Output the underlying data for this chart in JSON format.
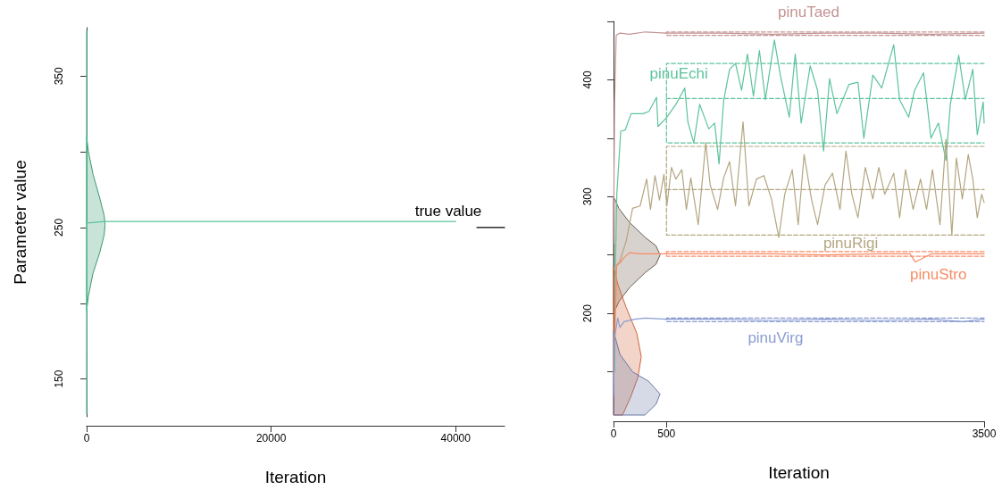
{
  "chart_data": [
    {
      "type": "line",
      "xlabel": "Iteration",
      "ylabel": "Parameter value",
      "xlim": [
        0,
        45300
      ],
      "xticks": [
        0,
        20000,
        40000
      ],
      "ylim": [
        125,
        382
      ],
      "yticks": [
        150,
        {
          "value": 200,
          "label": null
        },
        250,
        {
          "value": 300,
          "label": null
        },
        350
      ],
      "grid": false,
      "legend": false,
      "series": [
        {
          "type": "area",
          "color": "#3a9a72",
          "x": [
            0,
            200,
            700,
            1400,
            1900,
            2000,
            1900,
            1400,
            700,
            200,
            0
          ],
          "values": [
            310,
            300,
            285,
            270,
            258,
            252,
            245,
            233,
            220,
            205,
            195
          ]
        },
        {
          "color": "#5cc39c",
          "x": [
            0,
            0,
            30,
            2000,
            10000,
            20000,
            30000,
            40000
          ],
          "values": [
            380,
            127,
            253,
            254,
            254,
            254,
            254,
            254
          ]
        },
        {
          "color": "#000000",
          "x": [
            42300,
            45300
          ],
          "values": [
            250,
            250
          ]
        }
      ],
      "annotations": [
        "true value"
      ]
    },
    {
      "type": "line",
      "xlabel": "Iteration",
      "xlim": [
        0,
        3500
      ],
      "xticks": [
        0,
        500,
        3500
      ],
      "ylim": [
        113,
        450
      ],
      "yticks": [
        {
          "value": 150,
          "label": null
        },
        200,
        {
          "value": 250,
          "label": null
        },
        300,
        {
          "value": 350,
          "label": null
        },
        400,
        {
          "value": 450,
          "label": null
        }
      ],
      "grid": false,
      "legend": false,
      "series": [
        {
          "type": "area",
          "color": "#6e5e50",
          "x": [
            0,
            50,
            150,
            300,
            400,
            440,
            400,
            300,
            150,
            50,
            0
          ],
          "values": [
            300,
            290,
            278,
            265,
            258,
            250,
            242,
            235,
            222,
            210,
            200
          ]
        },
        {
          "type": "area",
          "color": "#d0643c",
          "x": [
            0,
            40,
            120,
            220,
            262,
            230,
            160,
            85
          ],
          "values": [
            240,
            225,
            205,
            183,
            163,
            145,
            128,
            113
          ]
        },
        {
          "type": "area",
          "color": "#6b7aa6",
          "x": [
            0,
            60,
            180,
            330,
            440,
            400,
            296
          ],
          "values": [
            185,
            165,
            150,
            142,
            131,
            122,
            113
          ]
        },
        {
          "line_style": "dashed",
          "color": "#c49393",
          "x": [
            3500,
            500,
            500,
            3500
          ],
          "values": [
            441,
            441,
            438,
            438
          ]
        },
        {
          "line_style": "dashed",
          "color": "#5cc39c",
          "x": [
            3500,
            500,
            500,
            3500
          ],
          "values": [
            414,
            414,
            346,
            346
          ]
        },
        {
          "line_style": "dashed",
          "color": "#5cc39c",
          "x": [
            500,
            3500
          ],
          "values": [
            384,
            384
          ]
        },
        {
          "line_style": "dashed",
          "color": "#b3a680",
          "x": [
            3500,
            500,
            500,
            3500
          ],
          "values": [
            343,
            343,
            267,
            267
          ]
        },
        {
          "line_style": "dashed",
          "color": "#b3a680",
          "x": [
            500,
            3500
          ],
          "values": [
            306,
            306
          ]
        },
        {
          "line_style": "dashed",
          "color": "#f98a64",
          "x": [
            3500,
            500,
            500,
            3500
          ],
          "values": [
            253,
            253,
            249,
            249
          ]
        },
        {
          "line_style": "dashed",
          "color": "#8b9dd0",
          "x": [
            3500,
            500,
            500,
            3500
          ],
          "values": [
            196,
            196,
            193,
            193
          ]
        },
        {
          "name": "pinuTaed",
          "color": "#c49393",
          "x": [
            0,
            10,
            25,
            60,
            150,
            300,
            500,
            1000,
            1500,
            2000,
            2500,
            3000,
            3500
          ],
          "values": [
            260,
            380,
            438,
            440,
            439,
            441,
            440,
            440,
            439,
            440,
            440,
            439,
            440
          ]
        },
        {
          "name": "pinuEchi",
          "color": "#5cc39c",
          "x": [
            10,
            20,
            31,
            68,
            110,
            166,
            279,
            335,
            406,
            420,
            504,
            589,
            673,
            702,
            758,
            814,
            899,
            955,
            997,
            1040,
            1096,
            1152,
            1209,
            1265,
            1321,
            1378,
            1434,
            1519,
            1575,
            1660,
            1716,
            1772,
            1857,
            1927,
            1984,
            2040,
            2110,
            2223,
            2308,
            2364,
            2449,
            2533,
            2646,
            2702,
            2787,
            2843,
            2928,
            2998,
            3068,
            3139,
            3181,
            3260,
            3322,
            3393,
            3435,
            3491,
            3500
          ],
          "values": [
            150,
            250,
            302,
            356,
            357,
            371,
            371,
            373,
            385,
            360,
            368,
            379,
            393,
            364,
            346,
            379,
            358,
            363,
            328,
            382,
            409,
            414,
            391,
            422,
            386,
            425,
            383,
            434,
            404,
            368,
            422,
            363,
            412,
            391,
            339,
            401,
            371,
            396,
            398,
            350,
            404,
            393,
            430,
            383,
            368,
            391,
            406,
            350,
            363,
            331,
            379,
            421,
            383,
            409,
            353,
            381,
            363
          ]
        },
        {
          "name": "pinuRigi",
          "color": "#b3a680",
          "x": [
            20,
            60,
            120,
            180,
            251,
            313,
            349,
            392,
            434,
            476,
            504,
            547,
            589,
            645,
            688,
            730,
            800,
            871,
            913,
            983,
            1040,
            1096,
            1152,
            1223,
            1279,
            1350,
            1420,
            1491,
            1561,
            1617,
            1688,
            1744,
            1800,
            1871,
            1927,
            1998,
            2068,
            2139,
            2195,
            2251,
            2308,
            2378,
            2449,
            2505,
            2561,
            2646,
            2702,
            2758,
            2829,
            2899,
            2956,
            3012,
            3083,
            3139,
            3195,
            3238,
            3294,
            3350,
            3393,
            3435,
            3477,
            3500
          ],
          "values": [
            240,
            245,
            262,
            290,
            292,
            315,
            289,
            318,
            297,
            319,
            292,
            325,
            315,
            323,
            289,
            316,
            276,
            346,
            310,
            289,
            316,
            330,
            292,
            364,
            292,
            315,
            318,
            298,
            265,
            302,
            323,
            276,
            336,
            297,
            276,
            310,
            320,
            289,
            339,
            302,
            282,
            325,
            298,
            325,
            302,
            320,
            282,
            323,
            289,
            315,
            289,
            323,
            276,
            349,
            267,
            333,
            298,
            336,
            315,
            282,
            302,
            295
          ]
        },
        {
          "name": "pinuStro",
          "color": "#f98a64",
          "x": [
            0,
            30,
            60,
            100,
            150,
            250,
            350,
            500,
            1000,
            1500,
            2000,
            2500,
            2800,
            2850,
            3000,
            3500
          ],
          "values": [
            150,
            241,
            243,
            248,
            252,
            251,
            251,
            251,
            251,
            251,
            250,
            251,
            251,
            244,
            251,
            251
          ]
        },
        {
          "name": "pinuVirg",
          "color": "#8b9dd0",
          "x": [
            0,
            10,
            20,
            40,
            60,
            100,
            200,
            300,
            500,
            1000,
            1500,
            2000,
            2500,
            3000,
            3300,
            3500
          ],
          "values": [
            130,
            180,
            185,
            196,
            188,
            193,
            195,
            196,
            195,
            195,
            194,
            195,
            194,
            195,
            193,
            195
          ]
        }
      ]
    }
  ]
}
